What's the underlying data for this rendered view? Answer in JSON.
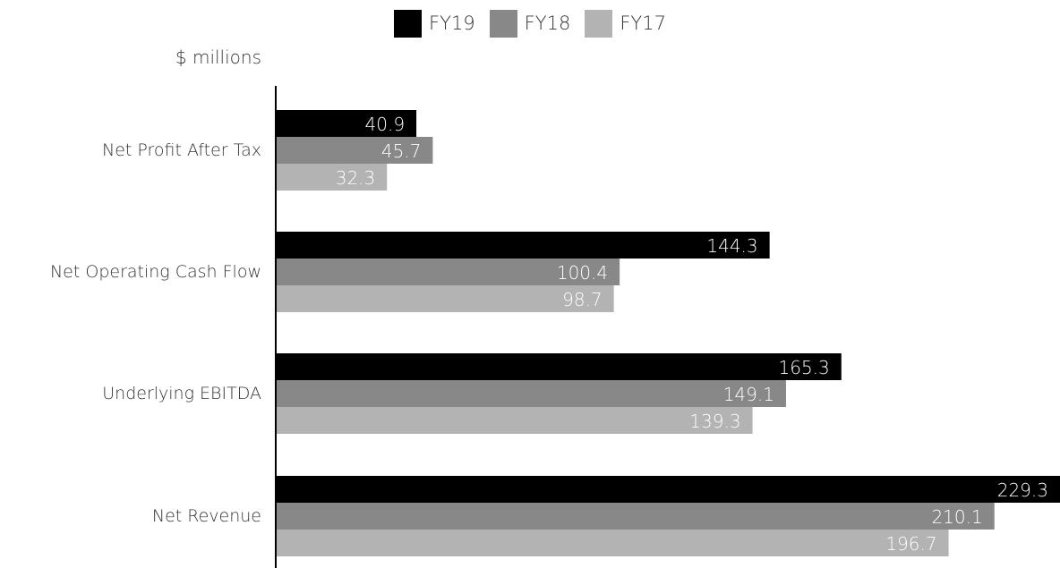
{
  "chart_data": {
    "type": "bar",
    "orientation": "horizontal",
    "unit_label": "$ millions",
    "categories": [
      "Net Profit After Tax",
      "Net Operating Cash Flow",
      "Underlying EBITDA",
      "Net Revenue"
    ],
    "series": [
      {
        "name": "FY19",
        "color": "#000000",
        "values": [
          40.9,
          144.3,
          165.3,
          229.3
        ]
      },
      {
        "name": "FY18",
        "color": "#888888",
        "values": [
          45.7,
          100.4,
          149.1,
          210.1
        ]
      },
      {
        "name": "FY17",
        "color": "#b3b3b3",
        "values": [
          32.3,
          98.7,
          139.3,
          196.7
        ]
      }
    ],
    "value_labels": [
      [
        "40.9",
        "144.3",
        "165.3",
        "229.3"
      ],
      [
        "45.7",
        "100.4",
        "149.1",
        "210.1"
      ],
      [
        "32.3",
        "98.7",
        "139.3",
        "196.7"
      ]
    ],
    "xlim": [
      0,
      229.3
    ],
    "legend_position": "top-center",
    "grid": false
  }
}
